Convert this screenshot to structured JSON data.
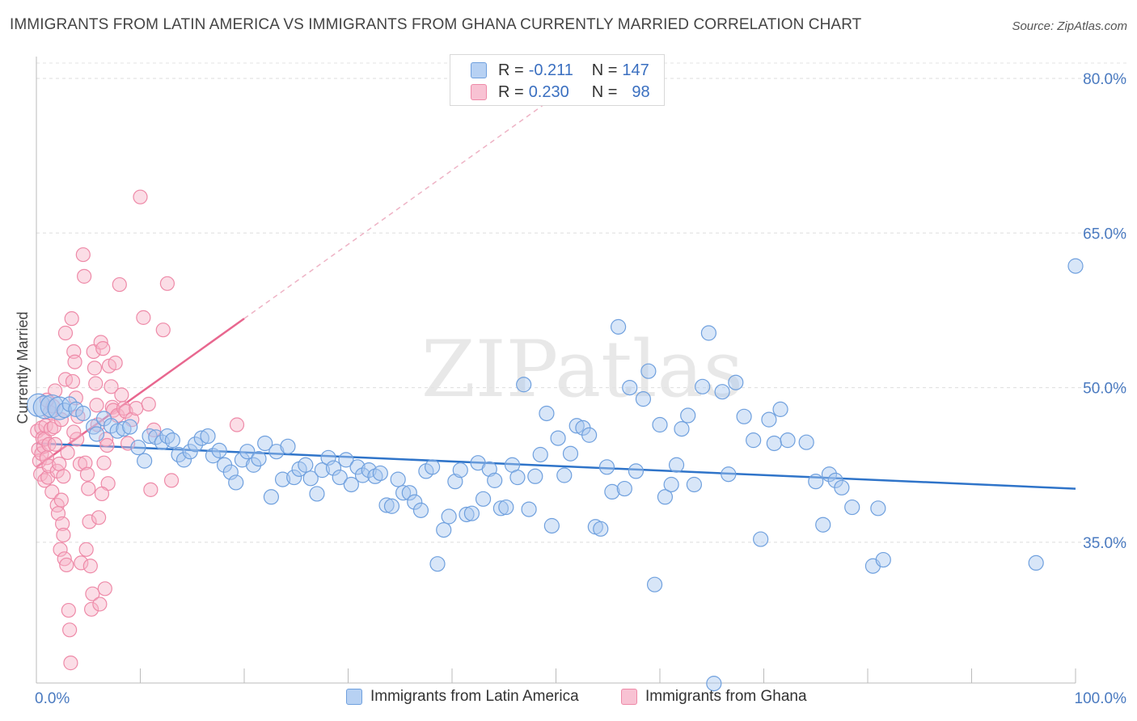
{
  "title": "IMMIGRANTS FROM LATIN AMERICA VS IMMIGRANTS FROM GHANA CURRENTLY MARRIED CORRELATION CHART",
  "source": "Source: ZipAtlas.com",
  "watermark": "ZIPatlas",
  "legend": {
    "series1": {
      "r_label": "R =",
      "r_value": "-0.211",
      "n_label": "N =",
      "n_value": "147"
    },
    "series2": {
      "r_label": "R =",
      "r_value": "0.230",
      "n_label": "N =",
      "n_value": "98"
    }
  },
  "bottom_legend": {
    "series1": "Immigrants from Latin America",
    "series2": "Immigrants from Ghana"
  },
  "colors": {
    "blue_fill": "#a9c8ef",
    "blue_stroke": "#6fa0de",
    "blue_line": "#2f74c9",
    "pink_fill": "#f6b4c8",
    "pink_stroke": "#ee8aa8",
    "pink_line": "#e8678f"
  },
  "chart_data": {
    "type": "scatter",
    "title": "IMMIGRANTS FROM LATIN AMERICA VS IMMIGRANTS FROM GHANA CURRENTLY MARRIED CORRELATION CHART",
    "xlabel": "",
    "ylabel": "Currently Married",
    "xlim": [
      0,
      100
    ],
    "ylim": [
      20,
      83
    ],
    "x_tick_labels": [
      "0.0%",
      "100.0%"
    ],
    "y_ticks": [
      35,
      50,
      65,
      80
    ],
    "y_tick_labels": [
      "35.0%",
      "50.0%",
      "65.0%",
      "80.0%"
    ],
    "grid": true,
    "legend_position": "top-center",
    "series": [
      {
        "name": "Immigrants from Latin America",
        "r": -0.211,
        "n": 147,
        "trend": {
          "x": [
            0,
            100
          ],
          "y": [
            44.6,
            40.2
          ]
        },
        "points": [
          [
            0.2,
            48.3
          ],
          [
            0.8,
            48.1
          ],
          [
            1.5,
            48.2
          ],
          [
            2.2,
            48.0
          ],
          [
            2.7,
            47.8
          ],
          [
            3.2,
            48.4
          ],
          [
            3.8,
            47.9
          ],
          [
            4.5,
            47.5
          ],
          [
            5.5,
            46.2
          ],
          [
            5.8,
            45.5
          ],
          [
            6.5,
            47.0
          ],
          [
            7.2,
            46.3
          ],
          [
            7.8,
            45.8
          ],
          [
            8.4,
            46.0
          ],
          [
            9.0,
            46.2
          ],
          [
            9.8,
            44.2
          ],
          [
            10.4,
            42.9
          ],
          [
            10.9,
            45.3
          ],
          [
            11.5,
            45.2
          ],
          [
            12.1,
            44.7
          ],
          [
            12.6,
            45.3
          ],
          [
            13.1,
            44.9
          ],
          [
            13.7,
            43.5
          ],
          [
            14.2,
            43.0
          ],
          [
            14.8,
            43.8
          ],
          [
            15.3,
            44.5
          ],
          [
            15.9,
            45.1
          ],
          [
            16.5,
            45.3
          ],
          [
            17.0,
            43.4
          ],
          [
            17.6,
            43.9
          ],
          [
            18.1,
            42.5
          ],
          [
            18.7,
            41.8
          ],
          [
            19.2,
            40.8
          ],
          [
            19.8,
            43.0
          ],
          [
            20.3,
            43.8
          ],
          [
            20.9,
            42.5
          ],
          [
            21.4,
            43.1
          ],
          [
            22.0,
            44.6
          ],
          [
            22.6,
            39.4
          ],
          [
            23.1,
            43.8
          ],
          [
            23.7,
            41.1
          ],
          [
            24.2,
            44.3
          ],
          [
            24.8,
            41.3
          ],
          [
            25.3,
            42.1
          ],
          [
            25.9,
            42.5
          ],
          [
            26.4,
            41.2
          ],
          [
            27.0,
            39.7
          ],
          [
            27.5,
            42.0
          ],
          [
            28.1,
            43.2
          ],
          [
            28.6,
            42.2
          ],
          [
            29.2,
            41.3
          ],
          [
            29.8,
            43.0
          ],
          [
            30.3,
            40.6
          ],
          [
            30.9,
            42.3
          ],
          [
            31.4,
            41.5
          ],
          [
            32.0,
            42.0
          ],
          [
            32.6,
            41.4
          ],
          [
            33.1,
            41.7
          ],
          [
            33.7,
            38.6
          ],
          [
            34.2,
            38.5
          ],
          [
            34.8,
            41.1
          ],
          [
            35.3,
            39.8
          ],
          [
            35.9,
            39.8
          ],
          [
            36.4,
            38.9
          ],
          [
            37.0,
            38.1
          ],
          [
            37.5,
            41.9
          ],
          [
            38.1,
            42.3
          ],
          [
            38.6,
            32.9
          ],
          [
            39.2,
            36.2
          ],
          [
            39.7,
            37.5
          ],
          [
            40.3,
            40.9
          ],
          [
            40.8,
            42.0
          ],
          [
            41.4,
            37.7
          ],
          [
            41.9,
            37.8
          ],
          [
            42.5,
            42.7
          ],
          [
            43.0,
            39.2
          ],
          [
            43.6,
            42.1
          ],
          [
            44.1,
            41.0
          ],
          [
            44.7,
            38.3
          ],
          [
            45.2,
            38.4
          ],
          [
            45.8,
            42.5
          ],
          [
            46.3,
            41.3
          ],
          [
            46.9,
            50.3
          ],
          [
            47.4,
            38.2
          ],
          [
            48.0,
            41.4
          ],
          [
            48.5,
            43.5
          ],
          [
            49.1,
            47.5
          ],
          [
            49.6,
            36.6
          ],
          [
            50.2,
            45.1
          ],
          [
            50.8,
            41.5
          ],
          [
            51.4,
            43.6
          ],
          [
            52.0,
            46.3
          ],
          [
            52.6,
            46.1
          ],
          [
            53.2,
            45.4
          ],
          [
            53.8,
            36.5
          ],
          [
            54.3,
            36.3
          ],
          [
            54.9,
            42.3
          ],
          [
            55.4,
            39.9
          ],
          [
            56.0,
            55.9
          ],
          [
            56.6,
            40.2
          ],
          [
            57.1,
            50.0
          ],
          [
            57.7,
            41.9
          ],
          [
            58.4,
            48.9
          ],
          [
            58.9,
            51.6
          ],
          [
            59.5,
            30.9
          ],
          [
            60.0,
            46.4
          ],
          [
            60.5,
            39.4
          ],
          [
            61.1,
            40.6
          ],
          [
            61.6,
            42.5
          ],
          [
            62.1,
            46.0
          ],
          [
            62.7,
            47.3
          ],
          [
            63.3,
            40.6
          ],
          [
            64.1,
            50.1
          ],
          [
            64.7,
            55.3
          ],
          [
            65.2,
            21.3
          ],
          [
            66.0,
            49.6
          ],
          [
            66.6,
            41.6
          ],
          [
            67.3,
            50.5
          ],
          [
            68.1,
            47.2
          ],
          [
            69.0,
            44.9
          ],
          [
            69.7,
            35.3
          ],
          [
            70.5,
            46.9
          ],
          [
            71.0,
            44.6
          ],
          [
            71.6,
            47.9
          ],
          [
            72.3,
            44.9
          ],
          [
            74.1,
            44.7
          ],
          [
            75.0,
            40.9
          ],
          [
            75.7,
            36.7
          ],
          [
            76.3,
            41.6
          ],
          [
            76.9,
            41.0
          ],
          [
            77.5,
            40.3
          ],
          [
            78.5,
            38.4
          ],
          [
            80.5,
            32.7
          ],
          [
            81.0,
            38.3
          ],
          [
            81.5,
            33.3
          ],
          [
            96.2,
            33.0
          ],
          [
            100.0,
            61.8
          ]
        ]
      },
      {
        "name": "Immigrants from Ghana",
        "r": 0.23,
        "n": 98,
        "trend": {
          "x": [
            0,
            20
          ],
          "y": [
            42.3,
            56.7
          ]
        },
        "trend_extension": {
          "x": [
            20,
            50
          ],
          "y": [
            56.7,
            78.3
          ]
        },
        "points": [
          [
            0.1,
            45.8
          ],
          [
            0.2,
            44.0
          ],
          [
            0.3,
            42.9
          ],
          [
            0.4,
            41.6
          ],
          [
            0.5,
            43.6
          ],
          [
            0.5,
            46.1
          ],
          [
            0.6,
            45.1
          ],
          [
            0.7,
            44.3
          ],
          [
            0.8,
            41.0
          ],
          [
            0.8,
            45.0
          ],
          [
            0.9,
            46.3
          ],
          [
            1.0,
            43.2
          ],
          [
            1.1,
            41.3
          ],
          [
            1.2,
            42.4
          ],
          [
            1.2,
            44.5
          ],
          [
            1.3,
            47.6
          ],
          [
            1.4,
            46.0
          ],
          [
            1.5,
            39.9
          ],
          [
            1.6,
            48.2
          ],
          [
            1.7,
            46.2
          ],
          [
            1.8,
            49.7
          ],
          [
            1.8,
            44.5
          ],
          [
            2.0,
            38.6
          ],
          [
            2.0,
            41.9
          ],
          [
            2.1,
            37.8
          ],
          [
            2.2,
            42.6
          ],
          [
            2.3,
            34.3
          ],
          [
            2.4,
            39.1
          ],
          [
            2.5,
            36.8
          ],
          [
            2.6,
            41.4
          ],
          [
            2.6,
            35.7
          ],
          [
            2.7,
            33.4
          ],
          [
            2.8,
            55.3
          ],
          [
            2.8,
            50.8
          ],
          [
            2.9,
            32.8
          ],
          [
            3.0,
            43.7
          ],
          [
            3.1,
            28.4
          ],
          [
            3.2,
            26.5
          ],
          [
            3.3,
            23.3
          ],
          [
            3.4,
            56.7
          ],
          [
            3.5,
            50.6
          ],
          [
            3.6,
            53.5
          ],
          [
            3.7,
            52.5
          ],
          [
            3.8,
            49.0
          ],
          [
            3.9,
            45.0
          ],
          [
            4.0,
            47.2
          ],
          [
            4.2,
            42.6
          ],
          [
            4.3,
            33.0
          ],
          [
            4.5,
            62.9
          ],
          [
            4.6,
            60.8
          ],
          [
            4.7,
            42.7
          ],
          [
            4.8,
            34.3
          ],
          [
            5.0,
            40.2
          ],
          [
            5.1,
            37.0
          ],
          [
            5.2,
            32.7
          ],
          [
            5.3,
            28.5
          ],
          [
            5.4,
            30.0
          ],
          [
            5.5,
            53.5
          ],
          [
            5.6,
            51.9
          ],
          [
            5.7,
            50.4
          ],
          [
            5.8,
            48.3
          ],
          [
            5.9,
            46.4
          ],
          [
            6.0,
            37.4
          ],
          [
            6.1,
            29.0
          ],
          [
            6.2,
            54.4
          ],
          [
            6.4,
            53.8
          ],
          [
            6.5,
            42.7
          ],
          [
            6.6,
            30.5
          ],
          [
            6.7,
            45.0
          ],
          [
            6.8,
            44.4
          ],
          [
            6.9,
            40.7
          ],
          [
            7.0,
            52.1
          ],
          [
            7.2,
            50.1
          ],
          [
            7.3,
            48.1
          ],
          [
            7.4,
            47.8
          ],
          [
            7.6,
            52.4
          ],
          [
            7.8,
            47.3
          ],
          [
            8.0,
            60.0
          ],
          [
            8.2,
            49.3
          ],
          [
            8.4,
            48.0
          ],
          [
            8.6,
            47.7
          ],
          [
            8.8,
            44.6
          ],
          [
            9.2,
            46.9
          ],
          [
            9.6,
            48.0
          ],
          [
            10.0,
            68.5
          ],
          [
            10.3,
            56.8
          ],
          [
            10.8,
            48.4
          ],
          [
            11.0,
            40.1
          ],
          [
            11.3,
            45.9
          ],
          [
            12.2,
            55.6
          ],
          [
            12.6,
            60.1
          ],
          [
            13.0,
            41.0
          ],
          [
            1.0,
            48.8
          ],
          [
            2.4,
            46.9
          ],
          [
            3.6,
            45.7
          ],
          [
            4.9,
            41.6
          ],
          [
            6.3,
            39.7
          ],
          [
            19.3,
            46.4
          ]
        ]
      }
    ]
  }
}
